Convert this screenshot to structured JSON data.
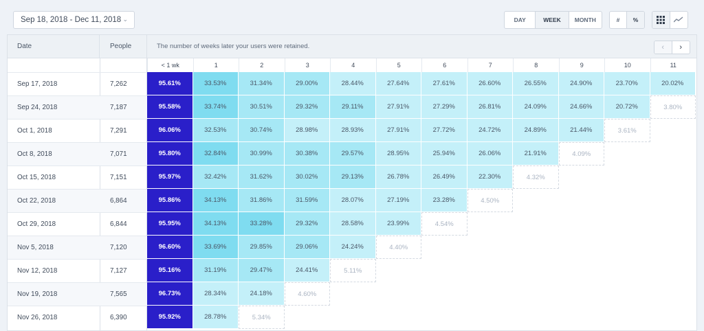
{
  "toolbar": {
    "date_range": "Sep 18, 2018 - Dec 11, 2018",
    "periods": [
      "DAY",
      "WEEK",
      "MONTH"
    ],
    "active_period": "WEEK",
    "units": [
      "#",
      "%"
    ],
    "view_icons": [
      "grid-icon",
      "line-chart-icon"
    ]
  },
  "table": {
    "date_header": "Date",
    "people_header": "People",
    "description": "The number of weeks later your users were retained.",
    "columns": [
      "< 1 wk",
      "1",
      "2",
      "3",
      "4",
      "5",
      "6",
      "7",
      "8",
      "9",
      "10",
      "11"
    ],
    "rows": [
      {
        "date": "Sep 17, 2018",
        "people": "7,262",
        "values": [
          "95.61%",
          "33.53%",
          "31.34%",
          "29.00%",
          "28.44%",
          "27.64%",
          "27.61%",
          "26.60%",
          "26.55%",
          "24.90%",
          "23.70%",
          "20.02%"
        ],
        "solid": 11
      },
      {
        "date": "Sep 24, 2018",
        "people": "7,187",
        "values": [
          "95.58%",
          "33.74%",
          "30.51%",
          "29.32%",
          "29.11%",
          "27.91%",
          "27.29%",
          "26.81%",
          "24.09%",
          "24.66%",
          "20.72%",
          "3.80%"
        ],
        "solid": 10
      },
      {
        "date": "Oct 1, 2018",
        "people": "7,291",
        "values": [
          "96.06%",
          "32.53%",
          "30.74%",
          "28.98%",
          "28.93%",
          "27.91%",
          "27.72%",
          "24.72%",
          "24.89%",
          "21.44%",
          "3.61%"
        ],
        "solid": 9
      },
      {
        "date": "Oct 8, 2018",
        "people": "7,071",
        "values": [
          "95.80%",
          "32.84%",
          "30.99%",
          "30.38%",
          "29.57%",
          "28.95%",
          "25.94%",
          "26.06%",
          "21.91%",
          "4.09%"
        ],
        "solid": 8
      },
      {
        "date": "Oct 15, 2018",
        "people": "7,151",
        "values": [
          "95.97%",
          "32.42%",
          "31.62%",
          "30.02%",
          "29.13%",
          "26.78%",
          "26.49%",
          "22.30%",
          "4.32%"
        ],
        "solid": 7
      },
      {
        "date": "Oct 22, 2018",
        "people": "6,864",
        "values": [
          "95.86%",
          "34.13%",
          "31.86%",
          "31.59%",
          "28.07%",
          "27.19%",
          "23.28%",
          "4.50%"
        ],
        "solid": 6
      },
      {
        "date": "Oct 29, 2018",
        "people": "6,844",
        "values": [
          "95.95%",
          "34.13%",
          "33.28%",
          "29.32%",
          "28.58%",
          "23.99%",
          "4.54%"
        ],
        "solid": 5
      },
      {
        "date": "Nov 5, 2018",
        "people": "7,120",
        "values": [
          "96.60%",
          "33.69%",
          "29.85%",
          "29.06%",
          "24.24%",
          "4.40%"
        ],
        "solid": 4
      },
      {
        "date": "Nov 12, 2018",
        "people": "7,127",
        "values": [
          "95.16%",
          "31.19%",
          "29.47%",
          "24.41%",
          "5.11%"
        ],
        "solid": 3
      },
      {
        "date": "Nov 19, 2018",
        "people": "7,565",
        "values": [
          "96.73%",
          "28.34%",
          "24.18%",
          "4.60%"
        ],
        "solid": 2
      },
      {
        "date": "Nov 26, 2018",
        "people": "6,390",
        "values": [
          "95.92%",
          "28.78%",
          "5.34%"
        ],
        "solid": 1
      }
    ]
  },
  "colors": {
    "first_col": "#2a1fc9",
    "dark_teal": "#7fdcf0",
    "mid_teal": "#a6e8f5",
    "light_teal": "#c4f0f9"
  }
}
